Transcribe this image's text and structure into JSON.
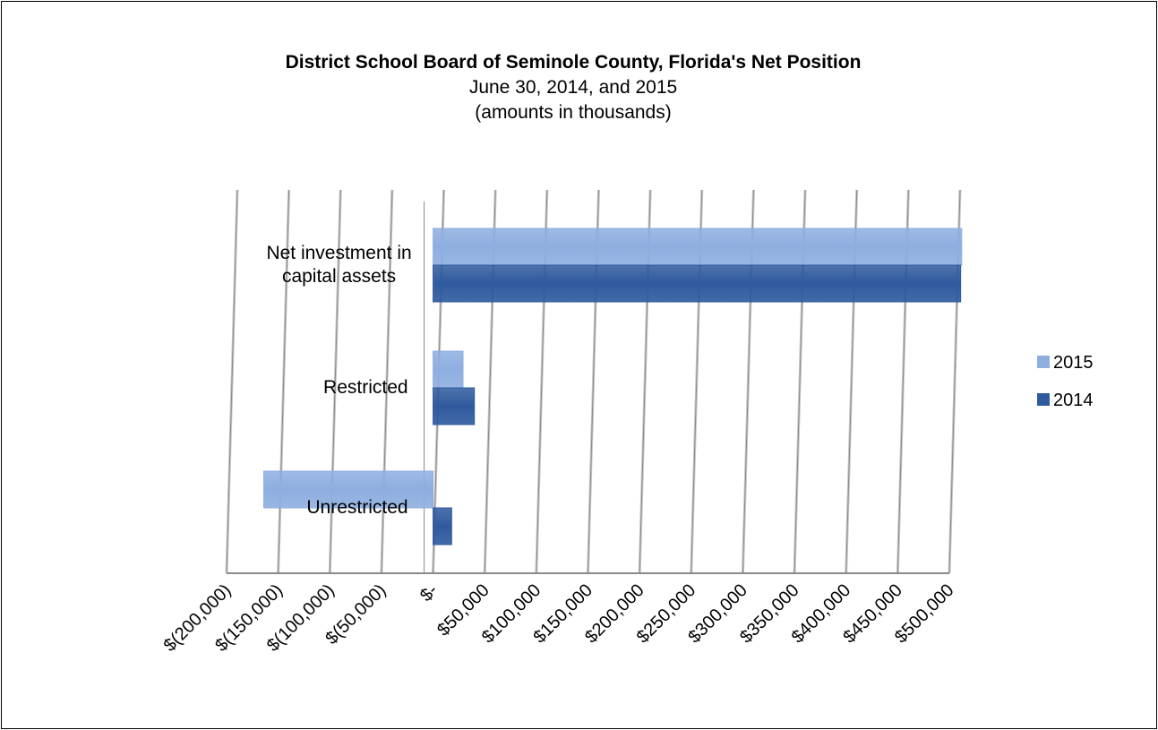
{
  "chart_data": {
    "type": "bar",
    "orientation": "horizontal",
    "title": "District School Board of Seminole County, Florida's Net Position",
    "subtitle": [
      "June 30, 2014, and 2015",
      "(amounts in thousands)"
    ],
    "categories": [
      "Net investment in capital assets",
      "Restricted",
      "Unrestricted"
    ],
    "series": [
      {
        "name": "2015",
        "color": "#8eaee0",
        "values": [
          512000,
          29000,
          -164000
        ]
      },
      {
        "name": "2014",
        "color": "#2f5a9e",
        "values": [
          511000,
          40000,
          18000
        ]
      }
    ],
    "xlim": [
      -200000,
      500000
    ],
    "xticks": [
      {
        "value": -200000,
        "label": "$(200,000)"
      },
      {
        "value": -150000,
        "label": "$(150,000)"
      },
      {
        "value": -100000,
        "label": "$(100,000)"
      },
      {
        "value": -50000,
        "label": "$(50,000)"
      },
      {
        "value": 0,
        "label": "$-"
      },
      {
        "value": 50000,
        "label": "$50,000"
      },
      {
        "value": 100000,
        "label": "$100,000"
      },
      {
        "value": 150000,
        "label": "$150,000"
      },
      {
        "value": 200000,
        "label": "$200,000"
      },
      {
        "value": 250000,
        "label": "$250,000"
      },
      {
        "value": 300000,
        "label": "$300,000"
      },
      {
        "value": 350000,
        "label": "$350,000"
      },
      {
        "value": 400000,
        "label": "$400,000"
      },
      {
        "value": 450000,
        "label": "$450,000"
      },
      {
        "value": 500000,
        "label": "$500,000"
      }
    ],
    "grid": true,
    "legend": "right"
  }
}
